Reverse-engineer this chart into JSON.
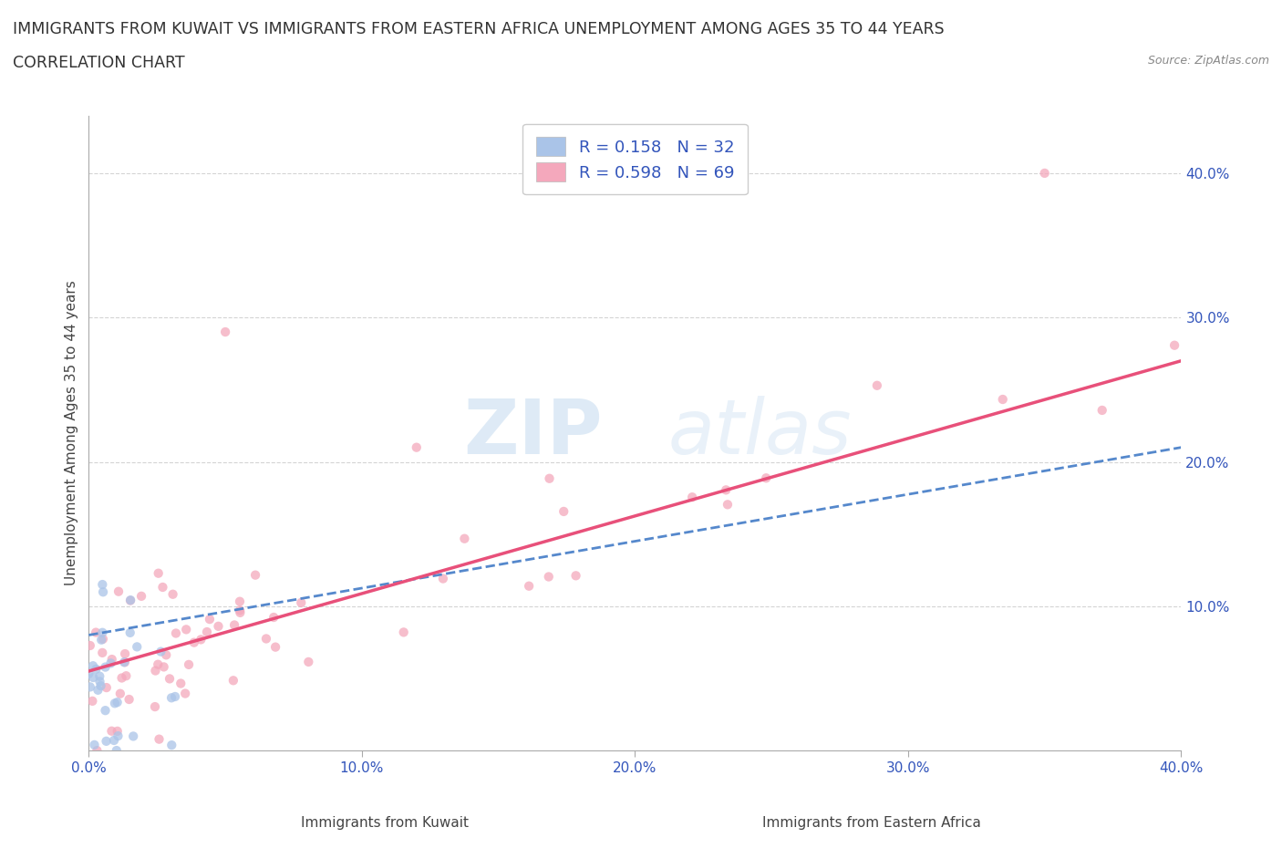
{
  "title_line1": "IMMIGRANTS FROM KUWAIT VS IMMIGRANTS FROM EASTERN AFRICA UNEMPLOYMENT AMONG AGES 35 TO 44 YEARS",
  "title_line2": "CORRELATION CHART",
  "source": "Source: ZipAtlas.com",
  "ylabel": "Unemployment Among Ages 35 to 44 years",
  "xlabel_kuwait": "Immigrants from Kuwait",
  "xlabel_eastern": "Immigrants from Eastern Africa",
  "watermark_zip": "ZIP",
  "watermark_atlas": "atlas",
  "kuwait_R": 0.158,
  "kuwait_N": 32,
  "eastern_R": 0.598,
  "eastern_N": 69,
  "kuwait_color": "#aac4e8",
  "eastern_color": "#f4a8bc",
  "kuwait_line_color": "#5588cc",
  "eastern_line_color": "#e8507a",
  "xmin": 0.0,
  "xmax": 0.4,
  "ymin": 0.0,
  "ymax": 0.44,
  "yticks": [
    0.1,
    0.2,
    0.3,
    0.4
  ],
  "xticks": [
    0.0,
    0.1,
    0.2,
    0.3,
    0.4
  ],
  "grid_color": "#d0d0d0",
  "background_color": "#ffffff",
  "title_fontsize": 12.5,
  "axis_label_fontsize": 11,
  "tick_fontsize": 11,
  "legend_fontsize": 13,
  "tick_color": "#3355bb"
}
